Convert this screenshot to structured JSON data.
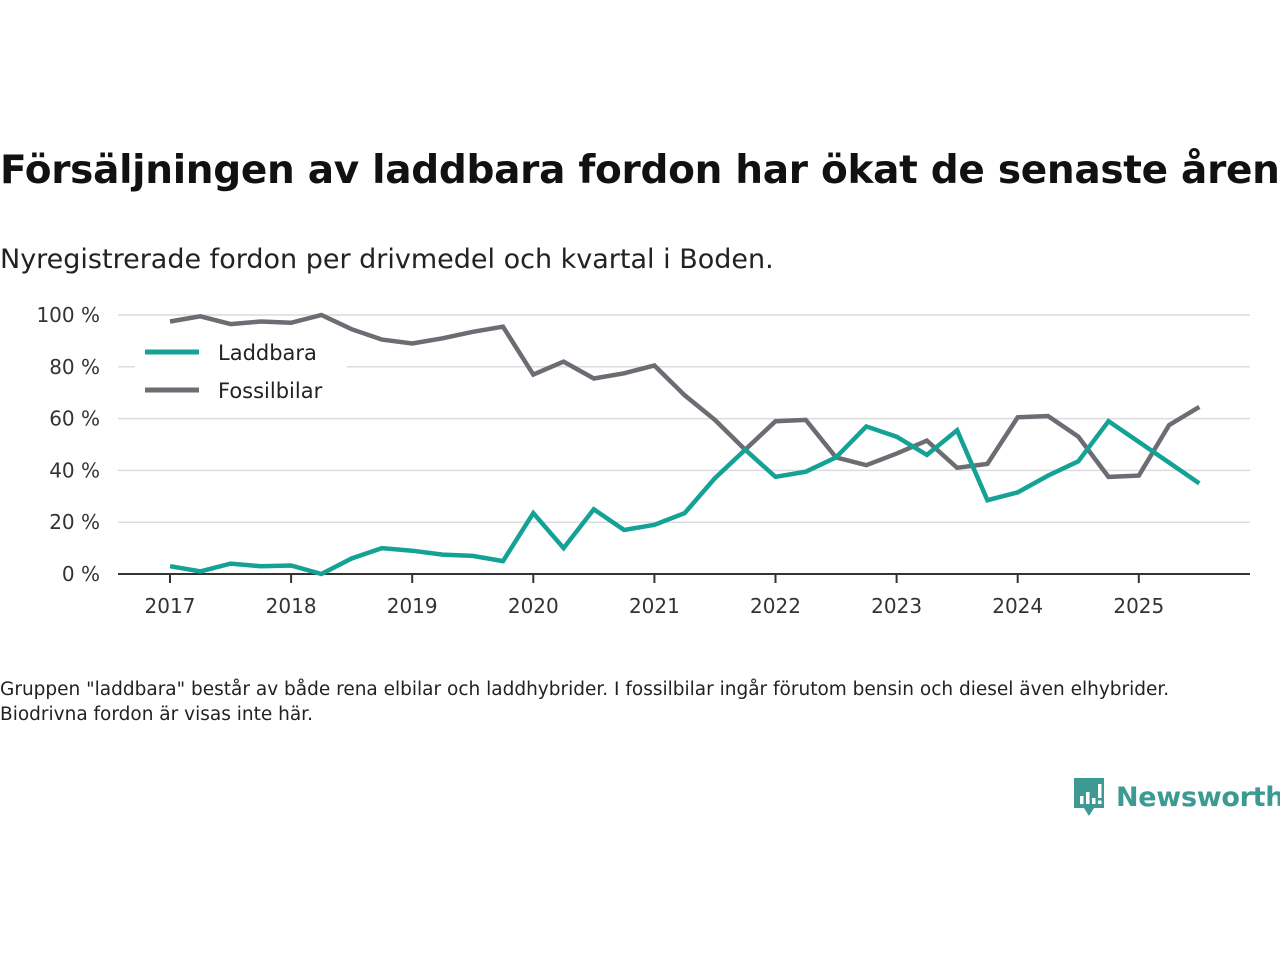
{
  "header": {
    "title": "Försäljningen av laddbara fordon har ökat de senaste åren",
    "subtitle": "Nyregistrerade fordon per drivmedel och kvartal i Boden."
  },
  "footer": {
    "note": "Gruppen \"laddbara\" består av både rena elbilar och laddhybrider. I fossilbilar ingår förutom bensin och diesel även elhybrider. Biodrivna fordon är visas inte här.",
    "brand": "Newsworthy",
    "brand_icon": "bar-chart-speech-bubble-icon",
    "brand_color": "#3c9a92"
  },
  "chart_data": {
    "type": "line",
    "title": "Försäljningen av laddbara fordon har ökat de senaste åren",
    "subtitle": "Nyregistrerade fordon per drivmedel och kvartal i Boden.",
    "xlabel": "",
    "ylabel": "",
    "x_start": 2017,
    "x_step": 0.25,
    "xlim": [
      2016.6,
      2026.0
    ],
    "ylim": [
      0,
      100
    ],
    "x_ticks": [
      2017,
      2018,
      2019,
      2020,
      2021,
      2022,
      2023,
      2024,
      2025
    ],
    "x_tick_labels": [
      "2017",
      "2018",
      "2019",
      "2020",
      "2021",
      "2022",
      "2023",
      "2024",
      "2025"
    ],
    "y_ticks": [
      0,
      20,
      40,
      60,
      80,
      100
    ],
    "y_tick_labels": [
      "0 %",
      "20 %",
      "40 %",
      "60 %",
      "80 %",
      "100 %"
    ],
    "grid": true,
    "legend_position": "top-left",
    "series": [
      {
        "name": "Laddbara",
        "color": "#14a196",
        "values": [
          3,
          1,
          4,
          3,
          3.3,
          0,
          6,
          10,
          9,
          7.5,
          7,
          5,
          23.5,
          10,
          25,
          17,
          19,
          23.5,
          37,
          48,
          37.5,
          39.5,
          45,
          57,
          53,
          46,
          55.5,
          28.5,
          31.5,
          38,
          43.5,
          59,
          51,
          43,
          35
        ]
      },
      {
        "name": "Fossilbilar",
        "color": "#6d6c72",
        "values": [
          97.5,
          99.5,
          96.5,
          97.5,
          97,
          100,
          94.5,
          90.5,
          89,
          91,
          93.5,
          95.5,
          77,
          82,
          75.5,
          77.5,
          80.5,
          69,
          59.5,
          48,
          59,
          59.5,
          45,
          42,
          46.5,
          51.5,
          41,
          42.5,
          60.5,
          61,
          53,
          37.5,
          38,
          57.5,
          64.5
        ]
      }
    ]
  }
}
